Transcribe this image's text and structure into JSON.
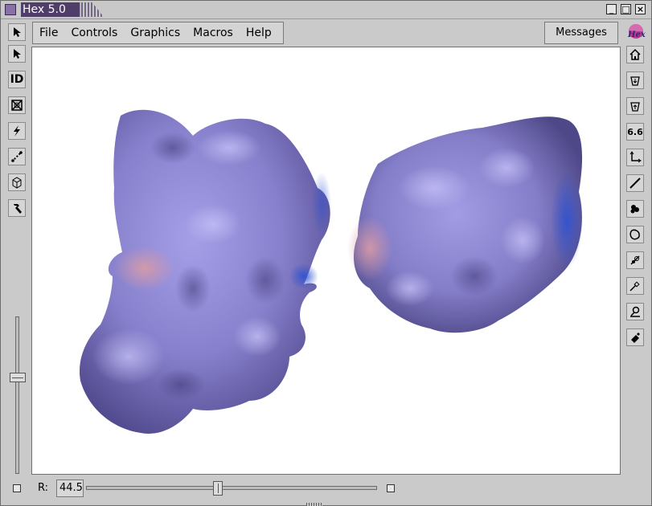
{
  "window": {
    "title": "Hex 5.0",
    "minimize": "_",
    "maximize": "□",
    "close": "×"
  },
  "menubar": {
    "items": [
      "File",
      "Controls",
      "Graphics",
      "Macros",
      "Help"
    ]
  },
  "messages_button": {
    "label": "Messages"
  },
  "left_tools": [
    {
      "name": "select-arrow-icon"
    },
    {
      "name": "pointer-arrow-icon"
    },
    {
      "name": "id-icon",
      "label": "ID"
    },
    {
      "name": "cross-box-icon"
    },
    {
      "name": "lightning-icon"
    },
    {
      "name": "dotted-line-icon"
    },
    {
      "name": "box-3d-icon"
    },
    {
      "name": "hammer-icon"
    }
  ],
  "right_tools": [
    {
      "name": "hex-logo-icon",
      "label": "Hex"
    },
    {
      "name": "home-icon"
    },
    {
      "name": "bucket-down-icon"
    },
    {
      "name": "bucket-up-icon"
    },
    {
      "name": "value-icon",
      "label": "6.6"
    },
    {
      "name": "axis-arrow-icon"
    },
    {
      "name": "diagonal-line-icon"
    },
    {
      "name": "blobs-icon"
    },
    {
      "name": "outline-icon"
    },
    {
      "name": "dock-icon"
    },
    {
      "name": "probe-icon"
    },
    {
      "name": "pin-icon"
    },
    {
      "name": "eraser-icon"
    }
  ],
  "bottom": {
    "r_label": "R:",
    "r_value": "44.5",
    "r_slider_fraction": 0.45,
    "left_slider_fraction": 0.38
  },
  "colors": {
    "title_bg": "#4f3d6a",
    "protein": "#8a82cc",
    "positive": "#c98a9a",
    "negative": "#3d5cc8"
  }
}
